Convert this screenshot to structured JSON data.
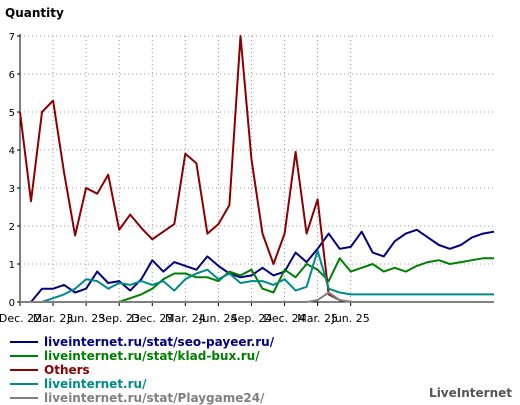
{
  "chart_data": {
    "type": "line",
    "title": "Quantity",
    "ylim": [
      0,
      7
    ],
    "y_ticks": [
      "0",
      "1",
      "2",
      "3",
      "4",
      "5",
      "6",
      "7"
    ],
    "x_tick_labels": [
      "Dec. 22",
      "Mar. 23",
      "Jun. 23",
      "Sep. 23",
      "Dec. 23",
      "Mar. 24",
      "Jun. 24",
      "Sep. 24",
      "Dec. 24",
      "Mar. 25",
      "Jun. 25"
    ],
    "x_count": 44,
    "grid": "dotted",
    "legend_position": "bottom",
    "series": [
      {
        "name": "liveinternet.ru/stat/seo-payeer.ru/",
        "color": "#000080",
        "values": [
          0,
          0,
          0.35,
          0.35,
          0.45,
          0.25,
          0.35,
          0.8,
          0.5,
          0.55,
          0.3,
          0.6,
          1.1,
          0.8,
          1.05,
          0.95,
          0.85,
          1.2,
          0.95,
          0.75,
          0.65,
          0.7,
          0.9,
          0.7,
          0.8,
          1.3,
          1.05,
          1.4,
          1.8,
          1.4,
          1.45,
          1.85,
          1.3,
          1.2,
          1.6,
          1.8,
          1.9,
          1.7,
          1.5,
          1.4,
          1.5,
          1.7,
          1.8,
          1.85
        ]
      },
      {
        "name": "liveinternet.ru/stat/klad-bux.ru/",
        "color": "#008000",
        "values": [
          0,
          0,
          0,
          0,
          0,
          0,
          0,
          0,
          0,
          0,
          0.1,
          0.2,
          0.35,
          0.6,
          0.75,
          0.75,
          0.65,
          0.65,
          0.55,
          0.8,
          0.7,
          0.85,
          0.35,
          0.25,
          0.85,
          0.65,
          1.0,
          0.85,
          0.55,
          1.15,
          0.8,
          0.9,
          1.0,
          0.8,
          0.9,
          0.8,
          0.95,
          1.05,
          1.1,
          1.0,
          1.05,
          1.1,
          1.15,
          1.15
        ]
      },
      {
        "name": "Others",
        "color": "#8b0000",
        "values": [
          5.0,
          2.65,
          5.0,
          5.3,
          3.4,
          1.75,
          3.0,
          2.85,
          3.35,
          1.9,
          2.3,
          1.95,
          1.65,
          1.85,
          2.05,
          3.9,
          3.65,
          1.8,
          2.05,
          2.55,
          7.0,
          3.75,
          1.8,
          1.0,
          1.8,
          3.95,
          1.8,
          2.7,
          0.2,
          0.05,
          0.0,
          0.0,
          0.0,
          0.0,
          0.0,
          0.0,
          0.0,
          0.0,
          0.0,
          0.0,
          0.0,
          0.0,
          0.0,
          0.0
        ]
      },
      {
        "name": "liveinternet.ru/",
        "color": "#008b8b",
        "values": [
          0,
          0,
          0,
          0.1,
          0.2,
          0.35,
          0.6,
          0.55,
          0.35,
          0.5,
          0.45,
          0.55,
          0.45,
          0.55,
          0.3,
          0.6,
          0.75,
          0.85,
          0.6,
          0.75,
          0.5,
          0.55,
          0.55,
          0.45,
          0.6,
          0.3,
          0.4,
          1.35,
          0.35,
          0.25,
          0.2,
          0.2,
          0.2,
          0.2,
          0.2,
          0.2,
          0.2,
          0.2,
          0.2,
          0.2,
          0.2,
          0.2,
          0.2,
          0.2
        ]
      },
      {
        "name": "liveinternet.ru/stat/Playgame24/",
        "color": "#808080",
        "values": [
          0,
          0,
          0,
          0,
          0,
          0,
          0,
          0,
          0,
          0,
          0,
          0,
          0,
          0,
          0,
          0,
          0,
          0,
          0,
          0,
          0,
          0,
          0,
          0,
          0,
          0,
          0,
          0.05,
          0.25,
          0.05,
          0.0,
          0.0,
          0.0,
          0.0,
          0.0,
          0.0,
          0.0,
          0.0,
          0.0,
          0.0,
          0.0,
          0.0,
          0.0,
          0.0
        ]
      }
    ]
  },
  "watermark": "LiveInternet"
}
